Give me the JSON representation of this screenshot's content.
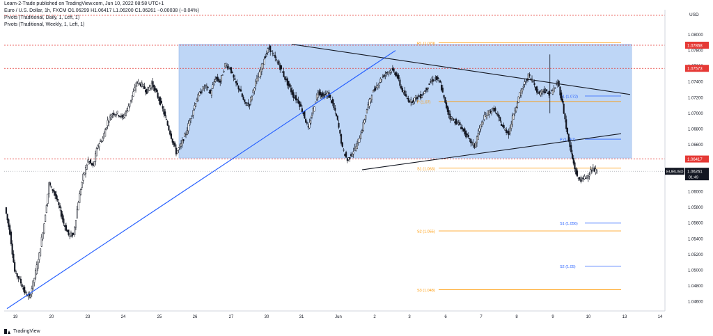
{
  "header": {
    "published": "Learn-2-Trade published on TradingView.com, Jun 10, 2022 08:58 UTC+1",
    "symbol_line": "Euro / U.S. Dollar, 1h, FXCM  O1.06299  H1.06417  L1.06200  C1.06261  −0.00038 (−0.04%)",
    "indicators": [
      "Pivots (Traditional, Daily, 1, Left, 1)",
      "Pivots (Traditional, Weekly, 1, Left, 1)"
    ]
  },
  "footer": {
    "brand": "TradingView"
  },
  "colors": {
    "bull": "#131722",
    "bear": "#131722",
    "box": "#b3cff5",
    "trend": "#2962ff",
    "resistance": "#e53935",
    "pivot_daily": "#ff9800",
    "pivot_weekly": "#2962ff",
    "price": "#131722"
  },
  "chart_data": {
    "type": "candlestick",
    "symbol": "EURUSD",
    "timeframe": "1h",
    "currency": "USD",
    "ylim": [
      1.0448,
      1.0832
    ],
    "y_ticks": [
      "1.08000",
      "1.07800",
      "1.07600",
      "1.07400",
      "1.07200",
      "1.07000",
      "1.06800",
      "1.06600",
      "1.06400",
      "1.06200",
      "1.06000",
      "1.05800",
      "1.05600",
      "1.05400",
      "1.05200",
      "1.05000",
      "1.04800",
      "1.04600"
    ],
    "x_ticks": [
      "19",
      "20",
      "23",
      "24",
      "25",
      "26",
      "27",
      "30",
      "31",
      "Jun",
      "2",
      "3",
      "6",
      "7",
      "8",
      "9",
      "10",
      "13",
      "14"
    ],
    "price_label": {
      "symbol": "EURUSD",
      "value": "1.06261",
      "countdown": "01:49"
    },
    "horizontal_levels": [
      {
        "value": "1.07868",
        "style": "dotted",
        "color": "red"
      },
      {
        "value": "1.07573",
        "style": "dotted",
        "color": "red"
      },
      {
        "value": "1.06417",
        "style": "dotted",
        "color": "red"
      }
    ],
    "pivots_daily": [
      {
        "label": "R1 (1.079)",
        "value": 1.079
      },
      {
        "label": "P (1.07)",
        "value": 1.0715
      },
      {
        "label": "S1 (1.063)",
        "value": 1.063
      },
      {
        "label": "S2 (1.055)",
        "value": 1.055
      },
      {
        "label": "S3 (1.048)",
        "value": 1.0475
      }
    ],
    "pivots_weekly": [
      {
        "label": "R1 (1.072)",
        "value": 1.0722
      },
      {
        "label": "P (1.067)",
        "value": 1.0667
      },
      {
        "label": "S1 (1.056)",
        "value": 1.056
      },
      {
        "label": "S2 (1.05)",
        "value": 1.0505
      }
    ],
    "rectangle": {
      "y_top": 1.0788,
      "y_bottom": 1.0643
    },
    "trendlines": [
      {
        "name": "ascending",
        "y_start": 1.0451,
        "y_end": 1.078
      },
      {
        "name": "upper",
        "y_start": 1.0788,
        "y_end": 1.0724
      },
      {
        "name": "lower",
        "y_start": 1.0628,
        "y_end": 1.0674
      }
    ],
    "price_path": [
      1.058,
      1.0548,
      1.0498,
      1.0488,
      1.0472,
      1.0465,
      1.049,
      1.052,
      1.056,
      1.061,
      1.06,
      1.0582,
      1.056,
      1.0545,
      1.0545,
      1.0588,
      1.062,
      1.064,
      1.0632,
      1.066,
      1.0668,
      1.069,
      1.07,
      1.07,
      1.0694,
      1.0705,
      1.0722,
      1.074,
      1.0736,
      1.0728,
      1.0738,
      1.0725,
      1.071,
      1.069,
      1.067,
      1.065,
      1.066,
      1.0675,
      1.0695,
      1.0715,
      1.0728,
      1.0735,
      1.0725,
      1.0745,
      1.074,
      1.0762,
      1.0758,
      1.074,
      1.073,
      1.0712,
      1.0712,
      1.0735,
      1.075,
      1.077,
      1.0784,
      1.0772,
      1.0762,
      1.0748,
      1.0735,
      1.0722,
      1.0715,
      1.07,
      1.068,
      1.0705,
      1.0728,
      1.0722,
      1.0725,
      1.0712,
      1.069,
      1.0655,
      1.064,
      1.065,
      1.066,
      1.068,
      1.0705,
      1.0725,
      1.0735,
      1.0745,
      1.0752,
      1.0755,
      1.075,
      1.0732,
      1.072,
      1.0715,
      1.072,
      1.0722,
      1.073,
      1.074,
      1.0745,
      1.0738,
      1.0712,
      1.0695,
      1.069,
      1.0685,
      1.0675,
      1.0665,
      1.0658,
      1.068,
      1.0695,
      1.0702,
      1.0705,
      1.0692,
      1.068,
      1.0675,
      1.07,
      1.072,
      1.0735,
      1.0748,
      1.074,
      1.0725,
      1.073,
      1.0725,
      1.0728,
      1.074,
      1.0712,
      1.0672,
      1.0642,
      1.0618,
      1.0615,
      1.062,
      1.0628,
      1.0626
    ]
  }
}
